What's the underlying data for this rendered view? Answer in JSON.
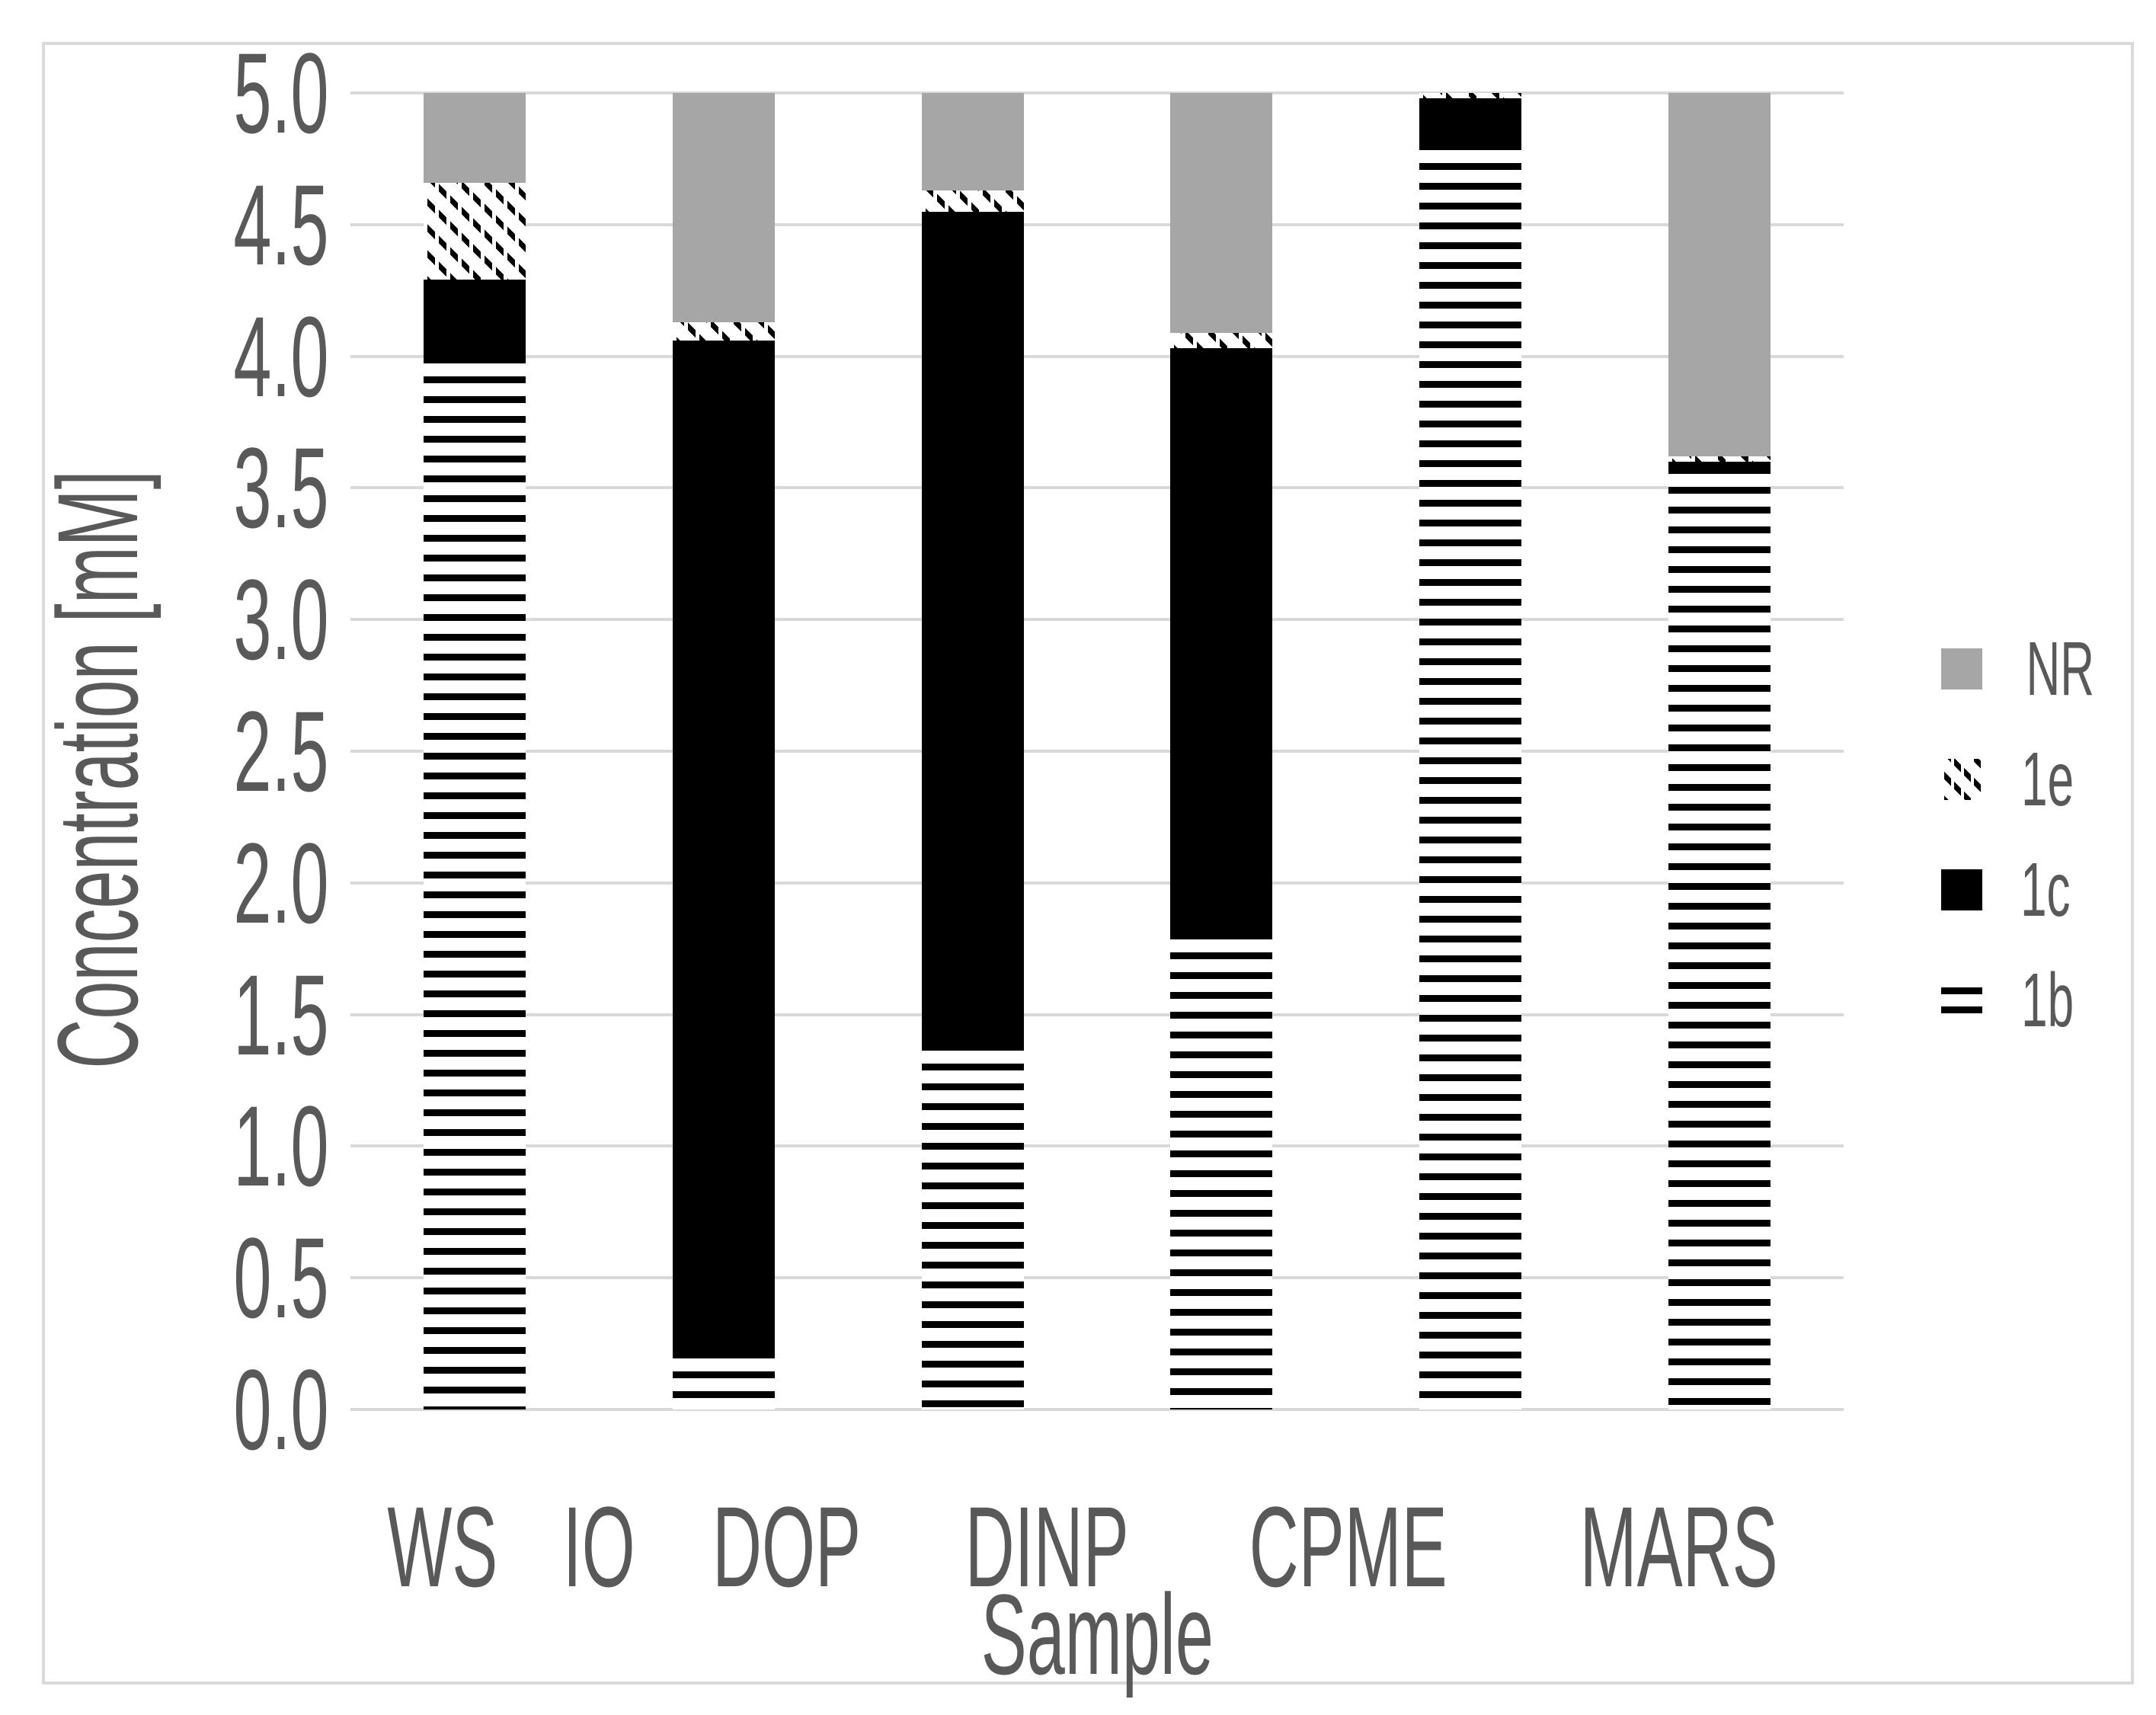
{
  "figure": {
    "background": "#ffffff",
    "border_color": "#d9d9d9"
  },
  "colors": {
    "nr_gray": "#a6a6a6",
    "series_black": "#000000",
    "gridline": "#d9d9d9",
    "text": "#595959"
  },
  "axes": {
    "y_title": "Concentration [mM]",
    "x_title": "Sample",
    "y_ticks": [
      "0.0",
      "0.5",
      "1.0",
      "1.5",
      "2.0",
      "2.5",
      "3.0",
      "3.5",
      "4.0",
      "4.5",
      "5.0"
    ],
    "y_min": 0,
    "y_max": 5
  },
  "legend": {
    "position": "right",
    "items": [
      {
        "label": "NR",
        "swatch": "gray-square"
      },
      {
        "label": "1e",
        "swatch": "diagonal-hatch"
      },
      {
        "label": "1c",
        "swatch": "black-square"
      },
      {
        "label": "1b",
        "swatch": "horizontal-stripes"
      }
    ]
  },
  "chart_data": {
    "type": "bar",
    "stacked": true,
    "title": "",
    "xlabel": "Sample",
    "ylabel": "Concentration [mM]",
    "ylim": [
      0,
      5
    ],
    "grid": true,
    "legend_position": "right",
    "categories": [
      "WS",
      "IO",
      "DOP",
      "DINP",
      "CPME",
      "MARS"
    ],
    "series": [
      {
        "name": "1b",
        "pattern": "horizontal-stripes",
        "values": [
          4.0,
          0.22,
          1.39,
          1.81,
          4.81,
          3.58
        ]
      },
      {
        "name": "1c",
        "pattern": "solid-black",
        "values": [
          0.29,
          3.84,
          3.16,
          2.22,
          0.17,
          0.02
        ]
      },
      {
        "name": "1e",
        "pattern": "diagonal-hatch",
        "values": [
          0.37,
          0.07,
          0.08,
          0.06,
          0.02,
          0.02
        ]
      },
      {
        "name": "NR",
        "pattern": "solid-gray",
        "values": [
          0.34,
          0.87,
          0.37,
          0.91,
          0.0,
          1.38
        ]
      }
    ],
    "stack_tops": {
      "WS": [
        4.0,
        4.29,
        4.66,
        5.0
      ],
      "IO": [
        0.22,
        4.06,
        4.13,
        5.0
      ],
      "DOP": [
        1.39,
        4.55,
        4.63,
        5.0
      ],
      "DINP": [
        1.81,
        4.03,
        4.09,
        5.0
      ],
      "CPME": [
        4.81,
        4.98,
        5.0,
        5.0
      ],
      "MARS": [
        3.58,
        3.6,
        3.62,
        5.0
      ]
    }
  }
}
